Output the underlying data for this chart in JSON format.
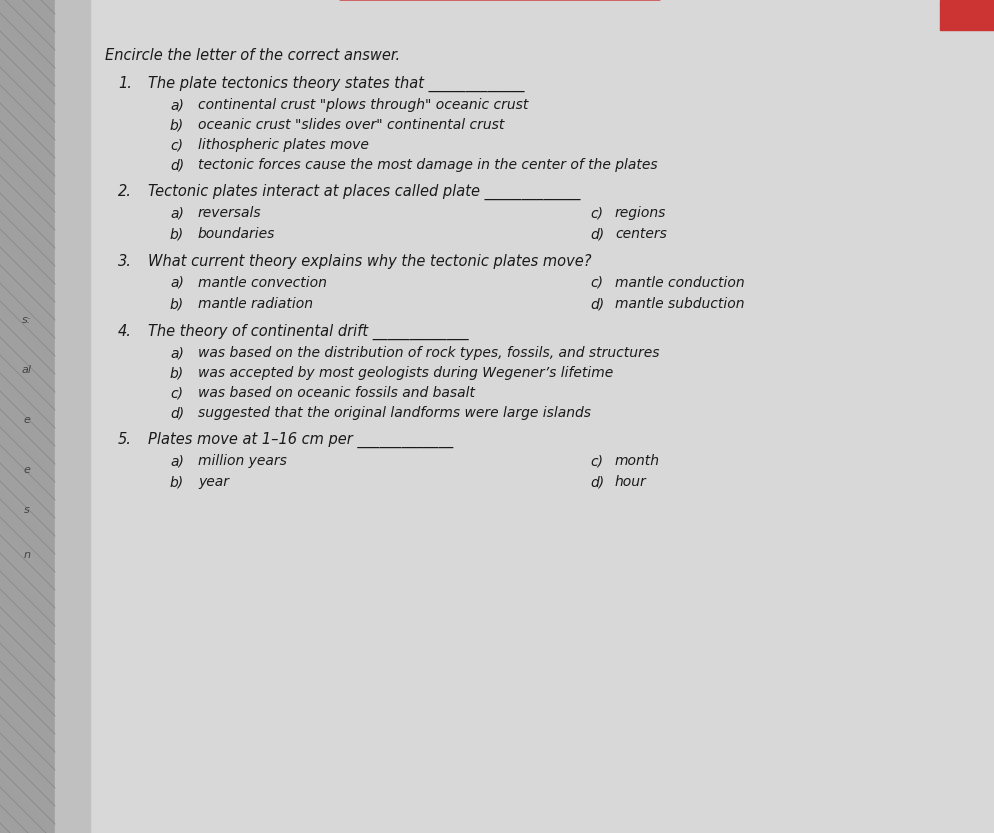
{
  "bg_color": "#e8e8e8",
  "page_color": "#dcdcdc",
  "top_bar_color": "#cc3333",
  "header": "Encircle the letter of the correct answer.",
  "questions": [
    {
      "number": "1.",
      "text": "The plate tectonics theory states that _____________",
      "choices": [
        {
          "letter": "a)",
          "text": "continental crust \"plows through\" oceanic crust"
        },
        {
          "letter": "b)",
          "text": "oceanic crust \"slides over\" continental crust"
        },
        {
          "letter": "c)",
          "text": "lithospheric plates move"
        },
        {
          "letter": "d)",
          "text": "tectonic forces cause the most damage in the center of the plates"
        }
      ],
      "two_col": false
    },
    {
      "number": "2.",
      "text": "Tectonic plates interact at places called plate _____________",
      "choices_left": [
        {
          "letter": "a)",
          "text": "reversals"
        },
        {
          "letter": "b)",
          "text": "boundaries"
        }
      ],
      "choices_right": [
        {
          "letter": "c)",
          "text": "regions"
        },
        {
          "letter": "d)",
          "text": "centers"
        }
      ],
      "two_col": true
    },
    {
      "number": "3.",
      "text": "What current theory explains why the tectonic plates move?",
      "choices_left": [
        {
          "letter": "a)",
          "text": "mantle convection"
        },
        {
          "letter": "b)",
          "text": "mantle radiation"
        }
      ],
      "choices_right": [
        {
          "letter": "c)",
          "text": "mantle conduction"
        },
        {
          "letter": "d)",
          "text": "mantle subduction"
        }
      ],
      "two_col": true
    },
    {
      "number": "4.",
      "text": "The theory of continental drift _____________",
      "choices": [
        {
          "letter": "a)",
          "text": "was based on the distribution of rock types, fossils, and structures"
        },
        {
          "letter": "b)",
          "text": "was accepted by most geologists during Wegener’s lifetime"
        },
        {
          "letter": "c)",
          "text": "was based on oceanic fossils and basalt"
        },
        {
          "letter": "d)",
          "text": "suggested that the original landforms were large islands"
        }
      ],
      "two_col": false
    },
    {
      "number": "5.",
      "text": "Plates move at 1–16 cm per _____________",
      "choices_left": [
        {
          "letter": "a)",
          "text": "million years"
        },
        {
          "letter": "b)",
          "text": "year"
        }
      ],
      "choices_right": [
        {
          "letter": "c)",
          "text": "month"
        },
        {
          "letter": "d)",
          "text": "hour"
        }
      ],
      "two_col": true
    }
  ],
  "left_labels": [
    "s:",
    "al",
    "e",
    "e",
    "s",
    "n"
  ],
  "text_color": "#1a1a1a",
  "header_fontsize": 10.5,
  "question_fontsize": 10.5,
  "choice_fontsize": 10.0
}
